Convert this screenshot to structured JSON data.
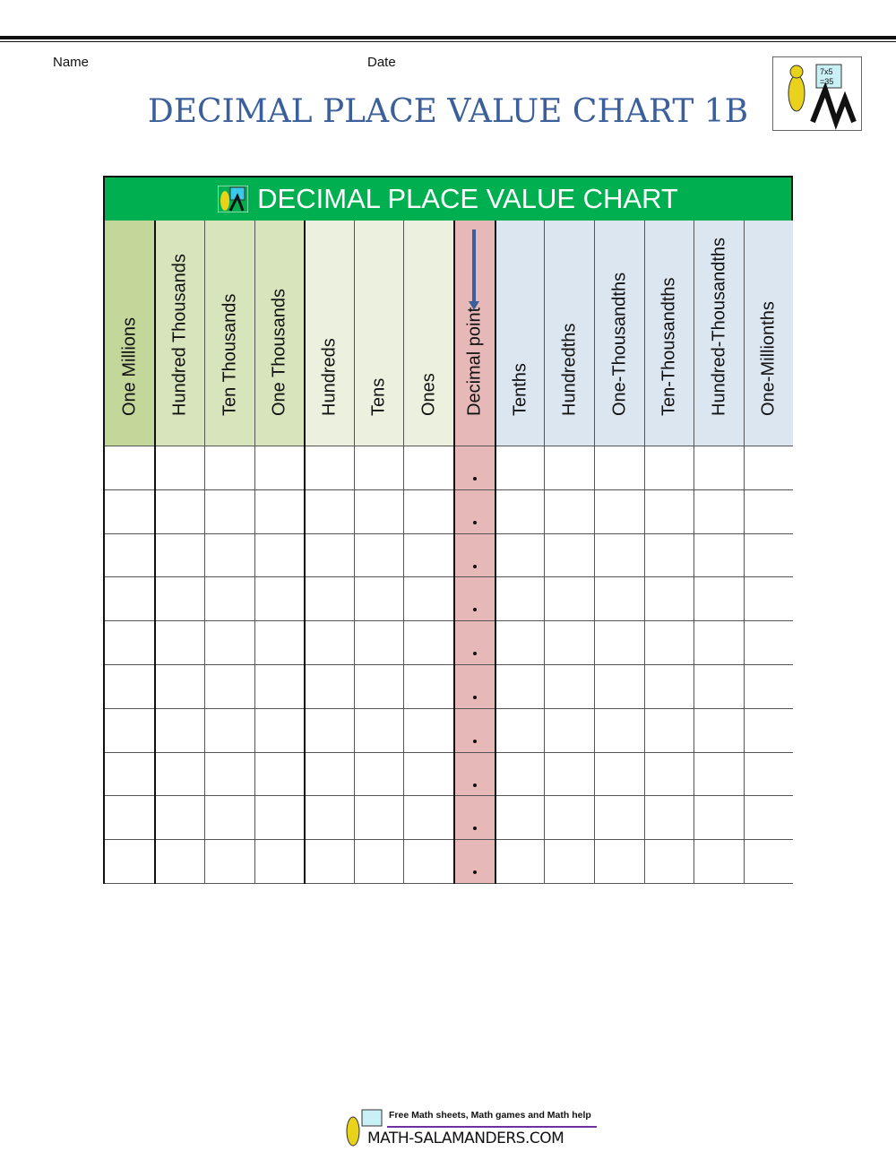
{
  "header": {
    "name_label": "Name",
    "date_label": "Date",
    "title": "DECIMAL PLACE VALUE CHART 1B"
  },
  "chart": {
    "title": "DECIMAL PLACE VALUE CHART",
    "header_color": "#00b050",
    "columns": [
      {
        "label": "One Millions",
        "color": "#c4d79b"
      },
      {
        "label": "Hundred Thousands",
        "color": "#d8e4bc"
      },
      {
        "label": "Ten Thousands",
        "color": "#d8e4bc"
      },
      {
        "label": "One Thousands",
        "color": "#d8e4bc"
      },
      {
        "label": "Hundreds",
        "color": "#ebf1de"
      },
      {
        "label": "Tens",
        "color": "#ebf1de"
      },
      {
        "label": "Ones",
        "color": "#ebf1de"
      },
      {
        "label": "Decimal point",
        "color": "#e6b8b7"
      },
      {
        "label": "Tenths",
        "color": "#dce6f1"
      },
      {
        "label": "Hundredths",
        "color": "#dce6f1"
      },
      {
        "label": "One-Thousandths",
        "color": "#dce6f1"
      },
      {
        "label": "Ten-Thousandths",
        "color": "#dce6f1"
      },
      {
        "label": "Hundred-Thousandths",
        "color": "#dce6f1"
      },
      {
        "label": "One-Millionths",
        "color": "#dce6f1"
      }
    ],
    "row_count": 10
  },
  "footer": {
    "tagline": "Free Math sheets, Math games and Math help",
    "site": "MATH-SALAMANDERS.COM"
  },
  "logo": {
    "text": "7x5 =35"
  }
}
